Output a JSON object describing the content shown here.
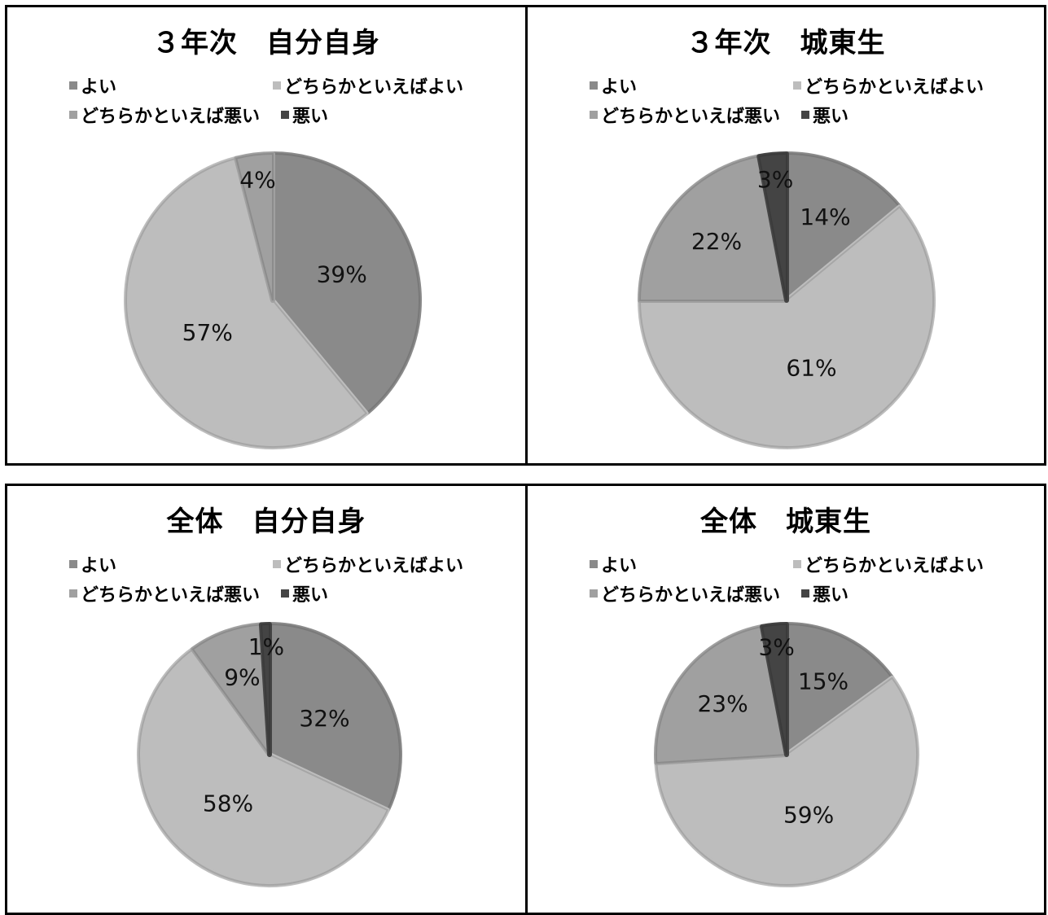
{
  "colors": {
    "よい": "#8a8a8a",
    "どちらかといえばよい": "#bdbdbd",
    "どちらかといえば悪い": "#a0a0a0",
    "悪い": "#444444"
  },
  "chart_data": [
    {
      "type": "pie",
      "title": "３年次　自分自身",
      "categories": [
        "よい",
        "どちらかといえばよい",
        "どちらかといえば悪い",
        "悪い"
      ],
      "values": [
        39,
        57,
        4,
        0
      ],
      "labels": [
        "39%",
        "57%",
        "4%",
        ""
      ],
      "legend": "top"
    },
    {
      "type": "pie",
      "title": "３年次　城東生",
      "categories": [
        "よい",
        "どちらかといえばよい",
        "どちらかといえば悪い",
        "悪い"
      ],
      "values": [
        14,
        61,
        22,
        3
      ],
      "labels": [
        "14%",
        "61%",
        "22%",
        "3%"
      ],
      "legend": "top"
    },
    {
      "type": "pie",
      "title": "全体　自分自身",
      "categories": [
        "よい",
        "どちらかといえばよい",
        "どちらかといえば悪い",
        "悪い"
      ],
      "values": [
        32,
        58,
        9,
        1
      ],
      "labels": [
        "32%",
        "58%",
        "9%",
        "1%"
      ],
      "legend": "top"
    },
    {
      "type": "pie",
      "title": "全体　城東生",
      "categories": [
        "よい",
        "どちらかといえばよい",
        "どちらかといえば悪い",
        "悪い"
      ],
      "values": [
        15,
        59,
        23,
        3
      ],
      "labels": [
        "15%",
        "59%",
        "23%",
        "3%"
      ],
      "legend": "top"
    }
  ]
}
